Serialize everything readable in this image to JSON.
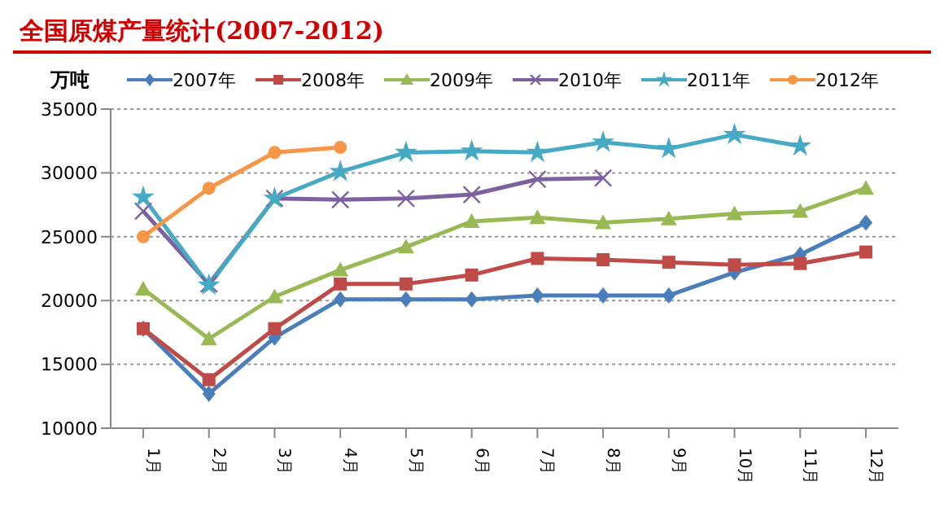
{
  "chart_data": {
    "type": "line",
    "title": "全国原煤产量统计(2007-2012)",
    "ylabel": "万吨",
    "categories": [
      "1月",
      "2月",
      "3月",
      "4月",
      "5月",
      "6月",
      "7月",
      "8月",
      "9月",
      "10月",
      "11月",
      "12月"
    ],
    "series": [
      {
        "name": "2007年",
        "color": "#4a7ebb",
        "marker": "diamond",
        "values": [
          17800,
          12700,
          17100,
          20100,
          20100,
          20100,
          20400,
          20400,
          20400,
          22200,
          23600,
          26100
        ]
      },
      {
        "name": "2008年",
        "color": "#be4b48",
        "marker": "square",
        "values": [
          17800,
          13800,
          17800,
          21300,
          21300,
          22000,
          23300,
          23200,
          23000,
          22800,
          22900,
          23800
        ]
      },
      {
        "name": "2009年",
        "color": "#98b954",
        "marker": "triangle",
        "values": [
          20900,
          17000,
          20300,
          22400,
          24200,
          26200,
          26500,
          26100,
          26400,
          26800,
          27000,
          28800
        ]
      },
      {
        "name": "2010年",
        "color": "#7d60a0",
        "marker": "cross",
        "values": [
          27000,
          21300,
          28000,
          27900,
          28000,
          28300,
          29500,
          29600,
          null,
          null,
          null,
          null
        ]
      },
      {
        "name": "2011年",
        "color": "#46aac5",
        "marker": "star",
        "values": [
          28100,
          21200,
          28000,
          30100,
          31600,
          31700,
          31600,
          32400,
          31900,
          33000,
          32100,
          null
        ]
      },
      {
        "name": "2012年",
        "color": "#f79646",
        "marker": "circle",
        "values": [
          25000,
          28800,
          31600,
          32000,
          null,
          null,
          null,
          null,
          null,
          null,
          null,
          null
        ]
      }
    ],
    "ylim": [
      10000,
      35000
    ],
    "yticks": [
      10000,
      15000,
      20000,
      25000,
      30000,
      35000
    ],
    "grid": "y",
    "legend": "top",
    "line_style": "solid"
  }
}
